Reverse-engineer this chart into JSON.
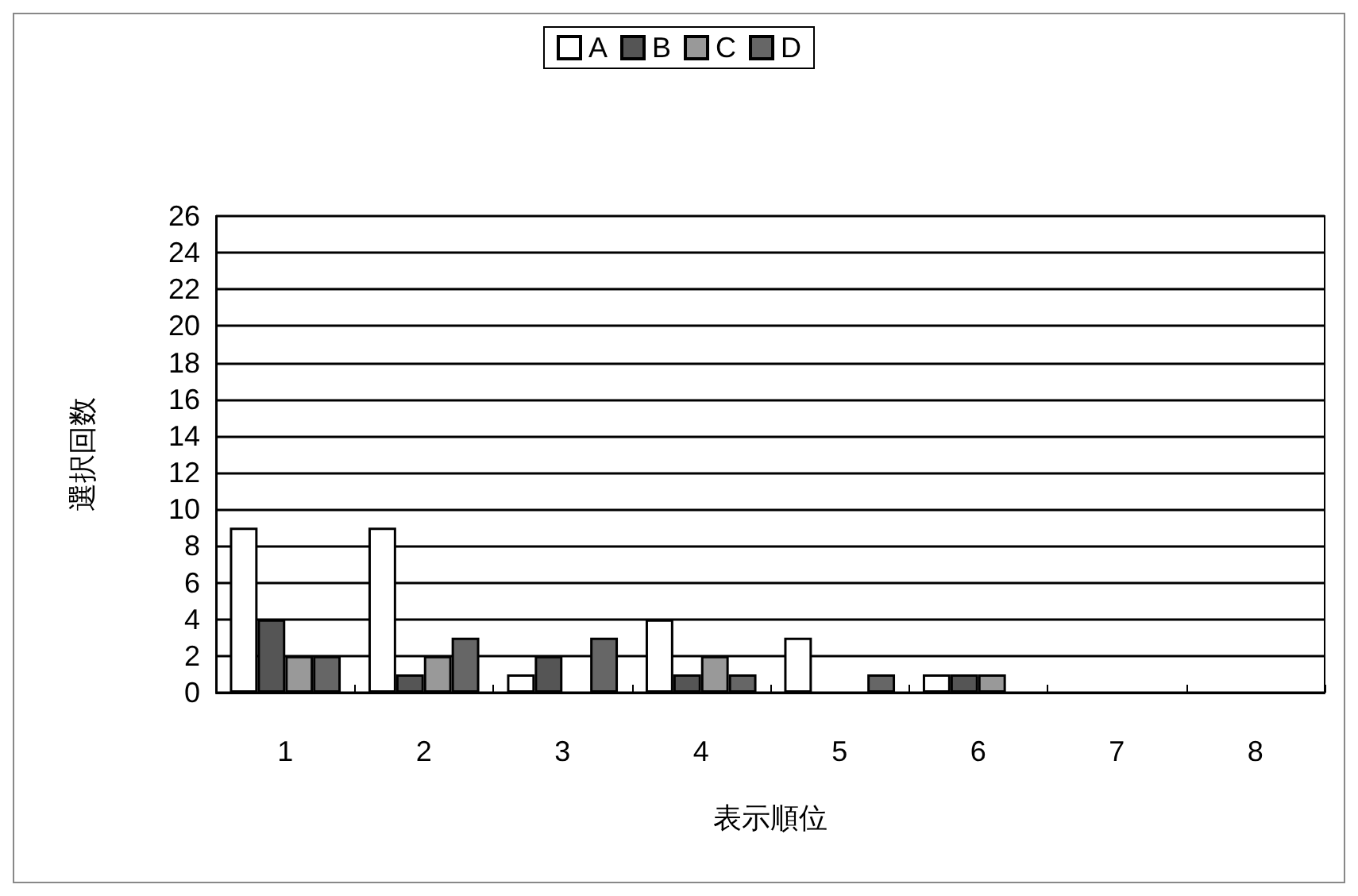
{
  "chart_data": {
    "type": "bar",
    "xlabel": "表示順位",
    "ylabel": "選択回数",
    "categories": [
      "1",
      "2",
      "3",
      "4",
      "5",
      "6",
      "7",
      "8"
    ],
    "series": [
      {
        "name": "A",
        "color": "#ffffff",
        "values": [
          9,
          9,
          1,
          4,
          3,
          1,
          0,
          0
        ]
      },
      {
        "name": "B",
        "color": "#555555",
        "values": [
          4,
          1,
          2,
          1,
          0,
          1,
          0,
          0
        ]
      },
      {
        "name": "C",
        "color": "#999999",
        "values": [
          2,
          2,
          0,
          2,
          0,
          1,
          0,
          0
        ]
      },
      {
        "name": "D",
        "color": "#666666",
        "values": [
          2,
          3,
          3,
          1,
          1,
          0,
          0,
          0
        ]
      }
    ],
    "ylim": [
      0,
      26
    ],
    "yticks": [
      0,
      2,
      4,
      6,
      8,
      10,
      12,
      14,
      16,
      18,
      20,
      22,
      24,
      26
    ],
    "grid": "y",
    "legend": "top"
  }
}
